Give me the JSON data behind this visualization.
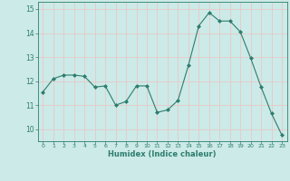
{
  "x": [
    0,
    1,
    2,
    3,
    4,
    5,
    6,
    7,
    8,
    9,
    10,
    11,
    12,
    13,
    14,
    15,
    16,
    17,
    18,
    19,
    20,
    21,
    22,
    23
  ],
  "y": [
    11.55,
    12.1,
    12.25,
    12.25,
    12.2,
    11.75,
    11.8,
    11.0,
    11.15,
    11.8,
    11.8,
    10.7,
    10.8,
    11.2,
    12.65,
    14.3,
    14.85,
    14.5,
    14.5,
    14.05,
    12.95,
    11.75,
    10.65,
    9.75
  ],
  "line_color": "#2d7d6e",
  "marker": "D",
  "marker_size": 2,
  "bg_color": "#cceae7",
  "grid_color": "#e8c8c8",
  "xlabel": "Humidex (Indice chaleur)",
  "ylim": [
    9.5,
    15.3
  ],
  "xlim": [
    -0.5,
    23.5
  ],
  "yticks": [
    10,
    11,
    12,
    13,
    14,
    15
  ],
  "xticks": [
    0,
    1,
    2,
    3,
    4,
    5,
    6,
    7,
    8,
    9,
    10,
    11,
    12,
    13,
    14,
    15,
    16,
    17,
    18,
    19,
    20,
    21,
    22,
    23
  ],
  "tick_color": "#2d7d6e",
  "label_color": "#2d7d6e"
}
